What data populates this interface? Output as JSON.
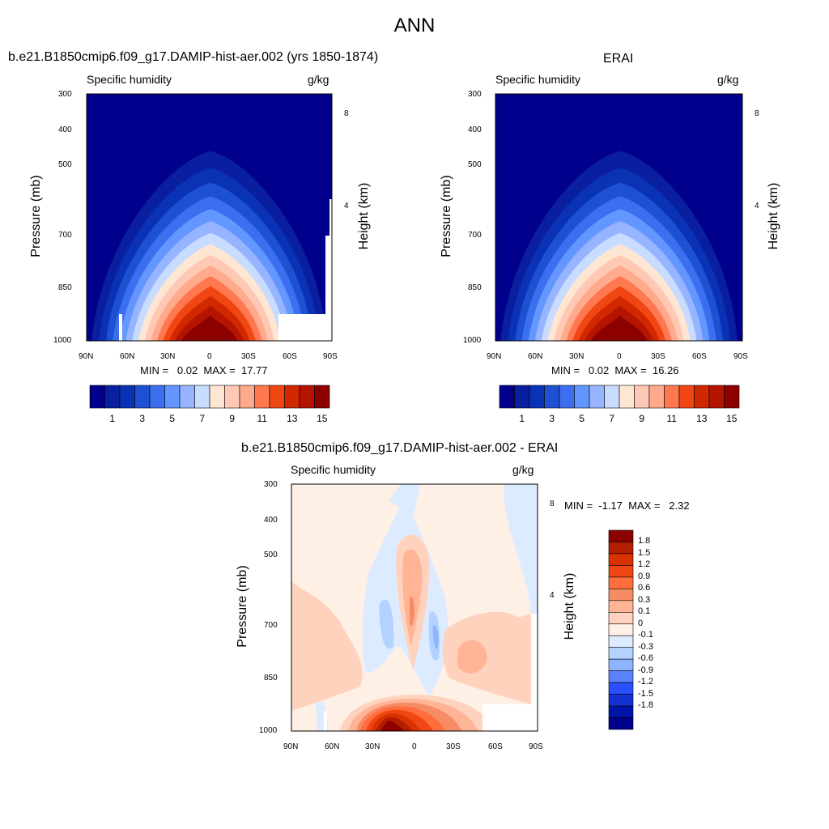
{
  "page": {
    "title": "ANN"
  },
  "chart_data": [
    {
      "type": "heatmap",
      "title": "b.e21.B1850cmip6.f09_g17.DAMIP-hist-aer.002 (yrs 1850-1874)",
      "subtitle_left": "Specific humidity",
      "subtitle_right": "g/kg",
      "ylabel": "Pressure (mb)",
      "ylabel_right": "Height (km)",
      "xticks": [
        "90N",
        "60N",
        "30N",
        "0",
        "30S",
        "60S",
        "90S"
      ],
      "yticks": [
        "300",
        "400",
        "500",
        "700",
        "850",
        "1000"
      ],
      "yticks_right": [
        "8",
        "4"
      ],
      "stats": "MIN =   0.02  MAX =  17.77",
      "colorbar_labels": [
        "1",
        "3",
        "5",
        "7",
        "9",
        "11",
        "13",
        "15"
      ],
      "colors": [
        "#00008c",
        "#0a1ea0",
        "#0a32b4",
        "#1e50d2",
        "#3c6ef0",
        "#6496ff",
        "#96b4ff",
        "#c8dcff",
        "#ffe6d2",
        "#ffc8b4",
        "#ffaa8c",
        "#ff7850",
        "#f04614",
        "#d22800",
        "#b41400",
        "#8c0000"
      ]
    },
    {
      "type": "heatmap",
      "title": "ERAI",
      "subtitle_left": "Specific humidity",
      "subtitle_right": "g/kg",
      "ylabel": "Pressure (mb)",
      "ylabel_right": "Height (km)",
      "xticks": [
        "90N",
        "60N",
        "30N",
        "0",
        "30S",
        "60S",
        "90S"
      ],
      "yticks": [
        "300",
        "400",
        "500",
        "700",
        "850",
        "1000"
      ],
      "yticks_right": [
        "8",
        "4"
      ],
      "stats": "MIN =   0.02  MAX =  16.26",
      "colorbar_labels": [
        "1",
        "3",
        "5",
        "7",
        "9",
        "11",
        "13",
        "15"
      ],
      "colors": [
        "#00008c",
        "#0a1ea0",
        "#0a32b4",
        "#1e50d2",
        "#3c6ef0",
        "#6496ff",
        "#96b4ff",
        "#c8dcff",
        "#ffe6d2",
        "#ffc8b4",
        "#ffaa8c",
        "#ff7850",
        "#f04614",
        "#d22800",
        "#b41400",
        "#8c0000"
      ]
    },
    {
      "type": "heatmap",
      "title": "b.e21.B1850cmip6.f09_g17.DAMIP-hist-aer.002 - ERAI",
      "subtitle_left": "Specific humidity",
      "subtitle_right": "g/kg",
      "ylabel": "Pressure (mb)",
      "ylabel_right": "Height (km)",
      "xticks": [
        "90N",
        "60N",
        "30N",
        "0",
        "30S",
        "60S",
        "90S"
      ],
      "yticks": [
        "300",
        "400",
        "500",
        "700",
        "850",
        "1000"
      ],
      "yticks_right": [
        "8",
        "4"
      ],
      "stats": "MIN =  -1.17  MAX =   2.32",
      "colorbar_labels": [
        "1.8",
        "1.5",
        "1.2",
        "0.9",
        "0.6",
        "0.3",
        "0.1",
        "0",
        "-0.1",
        "-0.3",
        "-0.6",
        "-0.9",
        "-1.2",
        "-1.5",
        "-1.8"
      ],
      "colors": [
        "#8c0000",
        "#b41e00",
        "#d73200",
        "#f04614",
        "#ff6e3c",
        "#f58c64",
        "#ffb496",
        "#ffd2be",
        "#fff0e6",
        "#dcebff",
        "#b4d2ff",
        "#8cb4ff",
        "#5a82ff",
        "#2850ff",
        "#1432d2",
        "#0014aa",
        "#00008c"
      ]
    }
  ]
}
